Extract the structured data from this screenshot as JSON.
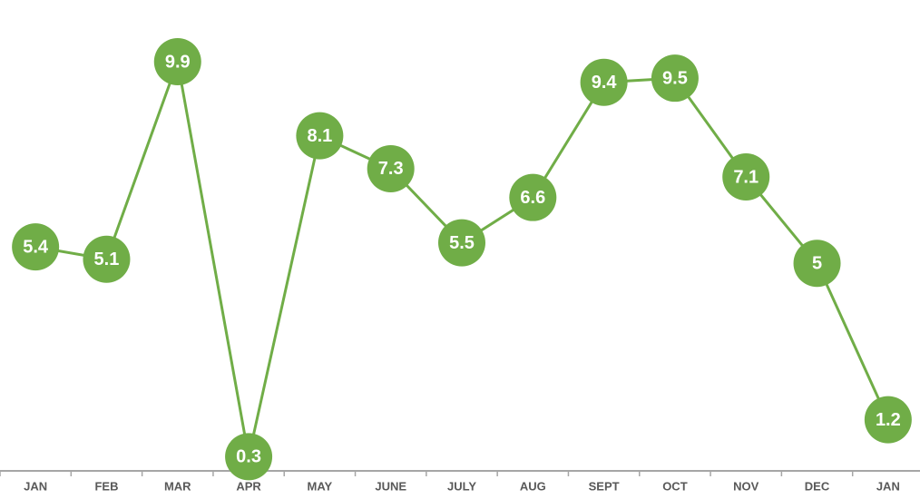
{
  "chart_data": {
    "type": "line",
    "categories": [
      "JAN",
      "FEB",
      "MAR",
      "APR",
      "MAY",
      "JUNE",
      "JULY",
      "AUG",
      "SEPT",
      "OCT",
      "NOV",
      "DEC",
      "JAN"
    ],
    "values": [
      5.4,
      5.1,
      9.9,
      0.3,
      8.1,
      7.3,
      5.5,
      6.6,
      9.4,
      9.5,
      7.1,
      5,
      1.2
    ],
    "color": "#70ad47",
    "ylim": [
      0,
      11.4
    ]
  }
}
